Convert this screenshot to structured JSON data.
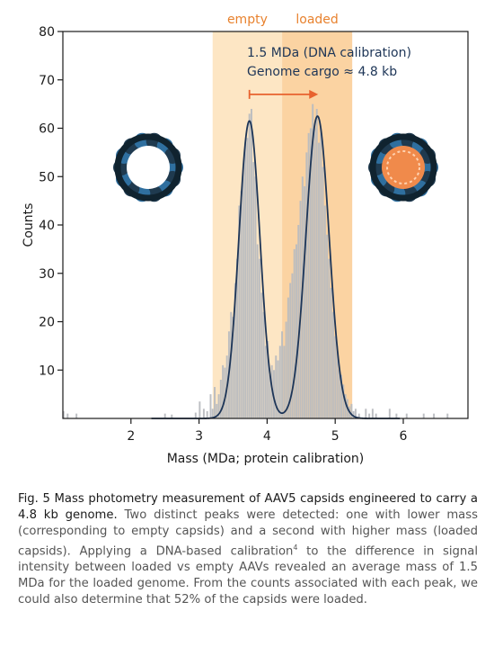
{
  "colors": {
    "empty_region": "#fde6c4",
    "loaded_region": "#fbd3a2",
    "region_label": "#e8822e",
    "arrow": "#e8622e",
    "fit_curve": "#1d3557",
    "histogram": "#b9bcc0",
    "annotation": "#1d3557",
    "capsid_shell": "#2f6f9f",
    "capsid_cargo": "#f08a4b"
  },
  "icons": [
    "empty-capsid-icon",
    "loaded-capsid-icon"
  ],
  "chart_data": {
    "type": "histogram",
    "xlabel": "Mass (MDa; protein calibration)",
    "ylabel": "Counts",
    "xlim": [
      1.0,
      6.95
    ],
    "ylim": [
      0,
      80
    ],
    "xticks": [
      2,
      3,
      4,
      5,
      6
    ],
    "yticks": [
      10,
      20,
      30,
      40,
      50,
      60,
      70,
      80
    ],
    "grid": false,
    "regions": [
      {
        "label": "empty",
        "x_start": 3.2,
        "x_end": 4.22
      },
      {
        "label": "loaded",
        "x_start": 4.22,
        "x_end": 5.25
      }
    ],
    "annotations": [
      "1.5 MDa (DNA calibration)",
      "Genome cargo ≈ 4.8 kb"
    ],
    "arrow": {
      "from_x": 3.74,
      "to_x": 4.75,
      "y": 67
    },
    "fit_peaks": [
      {
        "center": 3.74,
        "height": 61.5,
        "sigma": 0.155
      },
      {
        "center": 4.74,
        "height": 62.5,
        "sigma": 0.17
      }
    ],
    "bin_width": 0.026,
    "bins": [
      {
        "x": 1.01,
        "y": 1.5
      },
      {
        "x": 1.07,
        "y": 1
      },
      {
        "x": 1.2,
        "y": 1
      },
      {
        "x": 2.5,
        "y": 1
      },
      {
        "x": 2.6,
        "y": 0.8
      },
      {
        "x": 2.95,
        "y": 1.2
      },
      {
        "x": 3.01,
        "y": 3.5
      },
      {
        "x": 3.07,
        "y": 2
      },
      {
        "x": 3.12,
        "y": 1.5
      },
      {
        "x": 3.17,
        "y": 5
      },
      {
        "x": 3.2,
        "y": 2
      },
      {
        "x": 3.23,
        "y": 6.5
      },
      {
        "x": 3.26,
        "y": 3
      },
      {
        "x": 3.29,
        "y": 5
      },
      {
        "x": 3.32,
        "y": 8
      },
      {
        "x": 3.35,
        "y": 11
      },
      {
        "x": 3.38,
        "y": 10.5
      },
      {
        "x": 3.41,
        "y": 13
      },
      {
        "x": 3.44,
        "y": 18
      },
      {
        "x": 3.47,
        "y": 22
      },
      {
        "x": 3.5,
        "y": 21
      },
      {
        "x": 3.53,
        "y": 28
      },
      {
        "x": 3.56,
        "y": 33
      },
      {
        "x": 3.59,
        "y": 44
      },
      {
        "x": 3.62,
        "y": 47
      },
      {
        "x": 3.65,
        "y": 52
      },
      {
        "x": 3.68,
        "y": 57
      },
      {
        "x": 3.71,
        "y": 58
      },
      {
        "x": 3.74,
        "y": 63
      },
      {
        "x": 3.77,
        "y": 64
      },
      {
        "x": 3.8,
        "y": 53
      },
      {
        "x": 3.83,
        "y": 50
      },
      {
        "x": 3.86,
        "y": 36
      },
      {
        "x": 3.89,
        "y": 33
      },
      {
        "x": 3.92,
        "y": 26
      },
      {
        "x": 3.95,
        "y": 22
      },
      {
        "x": 3.98,
        "y": 15
      },
      {
        "x": 4.01,
        "y": 16
      },
      {
        "x": 4.04,
        "y": 9
      },
      {
        "x": 4.07,
        "y": 11
      },
      {
        "x": 4.1,
        "y": 10
      },
      {
        "x": 4.13,
        "y": 13
      },
      {
        "x": 4.16,
        "y": 12
      },
      {
        "x": 4.19,
        "y": 15
      },
      {
        "x": 4.22,
        "y": 18
      },
      {
        "x": 4.25,
        "y": 15
      },
      {
        "x": 4.28,
        "y": 20
      },
      {
        "x": 4.31,
        "y": 25
      },
      {
        "x": 4.34,
        "y": 28
      },
      {
        "x": 4.37,
        "y": 30
      },
      {
        "x": 4.4,
        "y": 35
      },
      {
        "x": 4.43,
        "y": 36
      },
      {
        "x": 4.46,
        "y": 40
      },
      {
        "x": 4.49,
        "y": 45
      },
      {
        "x": 4.52,
        "y": 50
      },
      {
        "x": 4.55,
        "y": 48
      },
      {
        "x": 4.58,
        "y": 55
      },
      {
        "x": 4.61,
        "y": 59
      },
      {
        "x": 4.64,
        "y": 60
      },
      {
        "x": 4.67,
        "y": 65
      },
      {
        "x": 4.7,
        "y": 60
      },
      {
        "x": 4.73,
        "y": 64
      },
      {
        "x": 4.76,
        "y": 57
      },
      {
        "x": 4.79,
        "y": 60
      },
      {
        "x": 4.82,
        "y": 52
      },
      {
        "x": 4.85,
        "y": 44
      },
      {
        "x": 4.88,
        "y": 38
      },
      {
        "x": 4.91,
        "y": 33
      },
      {
        "x": 4.94,
        "y": 27
      },
      {
        "x": 4.97,
        "y": 22
      },
      {
        "x": 5.0,
        "y": 17
      },
      {
        "x": 5.03,
        "y": 15
      },
      {
        "x": 5.06,
        "y": 10
      },
      {
        "x": 5.09,
        "y": 9
      },
      {
        "x": 5.12,
        "y": 7
      },
      {
        "x": 5.15,
        "y": 5
      },
      {
        "x": 5.18,
        "y": 4
      },
      {
        "x": 5.21,
        "y": 2.5
      },
      {
        "x": 5.24,
        "y": 3
      },
      {
        "x": 5.27,
        "y": 1.5
      },
      {
        "x": 5.3,
        "y": 2
      },
      {
        "x": 5.35,
        "y": 1
      },
      {
        "x": 5.45,
        "y": 2
      },
      {
        "x": 5.5,
        "y": 1
      },
      {
        "x": 5.55,
        "y": 2
      },
      {
        "x": 5.6,
        "y": 1
      },
      {
        "x": 5.8,
        "y": 2
      },
      {
        "x": 5.9,
        "y": 1
      },
      {
        "x": 6.05,
        "y": 1
      },
      {
        "x": 6.3,
        "y": 1
      },
      {
        "x": 6.45,
        "y": 1
      },
      {
        "x": 6.65,
        "y": 1
      }
    ]
  },
  "caption": {
    "bold": "Fig. 5 Mass photometry measurement of AAV5 capsids engineered to carry a 4.8 kb genome.",
    "body_before": " Two distinct peaks were detected: one with lower mass (corresponding to empty capsids) and a second with higher mass (loaded capsids).  Applying a DNA-based calibration",
    "superscript": "4",
    "body_after": " to the difference in signal intensity between loaded vs empty AAVs revealed an average mass of 1.5 MDa for the loaded genome. From the counts associated with each peak, we could also determine that 52% of the capsids were loaded."
  }
}
